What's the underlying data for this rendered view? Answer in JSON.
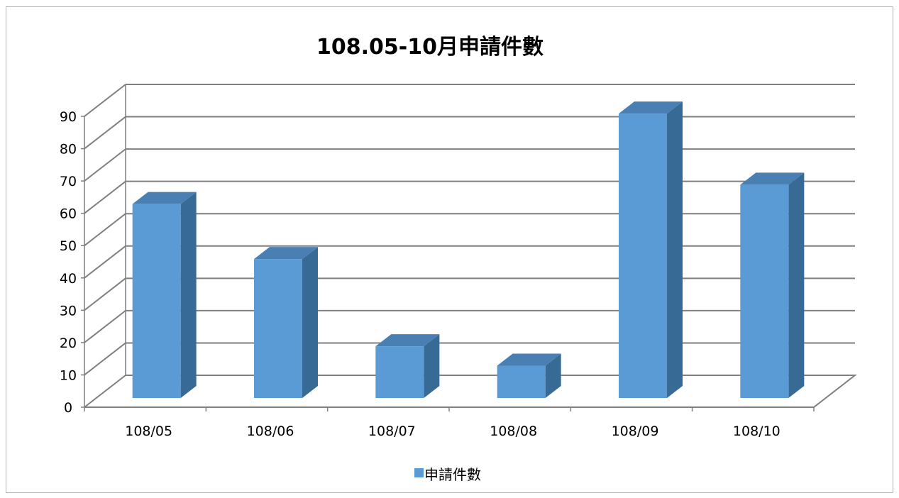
{
  "chart_data": {
    "type": "bar",
    "title": "108.05-10月申請件數",
    "categories": [
      "108/05",
      "108/06",
      "108/07",
      "108/08",
      "108/09",
      "108/10"
    ],
    "series": [
      {
        "name": "申請件數",
        "values": [
          60,
          43,
          16,
          10,
          88,
          66
        ]
      }
    ],
    "y_ticks": [
      "0",
      "10",
      "20",
      "30",
      "40",
      "50",
      "60",
      "70",
      "80",
      "90"
    ],
    "ylim": [
      0,
      90
    ],
    "xlabel": "",
    "ylabel": "",
    "grid": true,
    "three_d": true,
    "legend_position": "bottom",
    "colors": {
      "bar_front": "#5b9bd5",
      "bar_side": "#376a94",
      "bar_top": "#4a7fb3",
      "grid": "#7f7f7f",
      "axis": "#7f7f7f"
    }
  }
}
